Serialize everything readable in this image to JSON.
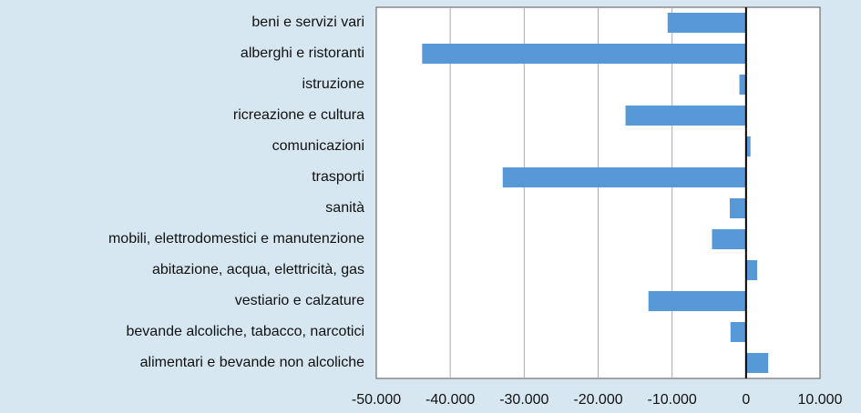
{
  "chart_data": {
    "type": "bar",
    "orientation": "horizontal",
    "categories": [
      "beni e servizi vari",
      "alberghi e ristoranti",
      "istruzione",
      "ricreazione e cultura",
      "comunicazioni",
      "trasporti",
      "sanità",
      "mobili, elettrodomestici e manutenzione",
      "abitazione, acqua, elettricità, gas",
      "vestiario e calzature",
      "bevande alcoliche, tabacco, narcotici",
      "alimentari e bevande non alcoliche"
    ],
    "values": [
      -10600,
      -43800,
      -900,
      -16300,
      600,
      -32900,
      -2200,
      -4600,
      1500,
      -13200,
      -2100,
      3000
    ],
    "color": "#5799d6",
    "xlim": [
      -50000,
      10000
    ],
    "xticks": [
      {
        "value": -50000,
        "label": "-50.000"
      },
      {
        "value": -40000,
        "label": "-40.000"
      },
      {
        "value": -30000,
        "label": "-30.000"
      },
      {
        "value": -20000,
        "label": "-20.000"
      },
      {
        "value": -10000,
        "label": "-10.000"
      },
      0,
      {
        "value": 10000,
        "label": "10.000"
      }
    ],
    "grid": true
  }
}
